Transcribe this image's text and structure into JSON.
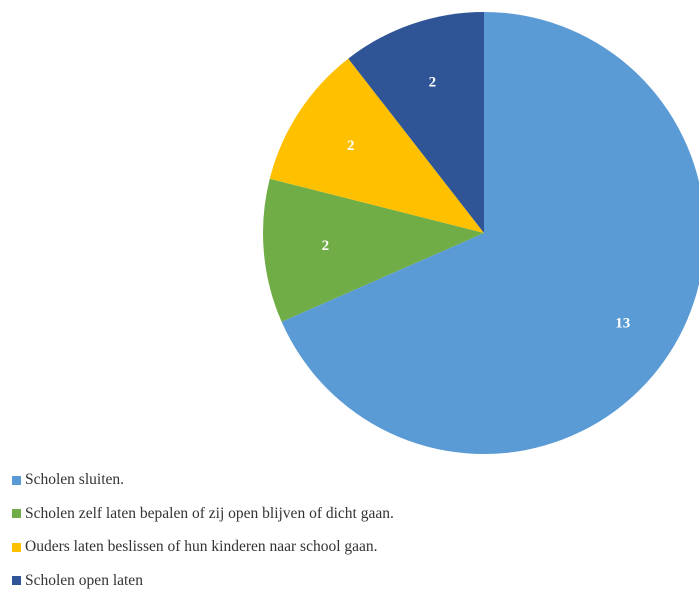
{
  "chart_data": {
    "type": "pie",
    "title": "",
    "start_angle_deg": 0,
    "direction": "clockwise",
    "data_labels": true,
    "legend_position": "bottom-left",
    "slices": [
      {
        "label": "Scholen sluiten.",
        "value": 13,
        "color": "#5B9BD5"
      },
      {
        "label": "Scholen zelf laten bepalen of zij open blijven of dicht gaan.",
        "value": 2,
        "color": "#70AD47"
      },
      {
        "label": "Ouders laten beslissen of hun kinderen naar school gaan.",
        "value": 2,
        "color": "#FFC000"
      },
      {
        "label": "Scholen open laten",
        "value": 2,
        "color": "#2F5597"
      }
    ]
  }
}
